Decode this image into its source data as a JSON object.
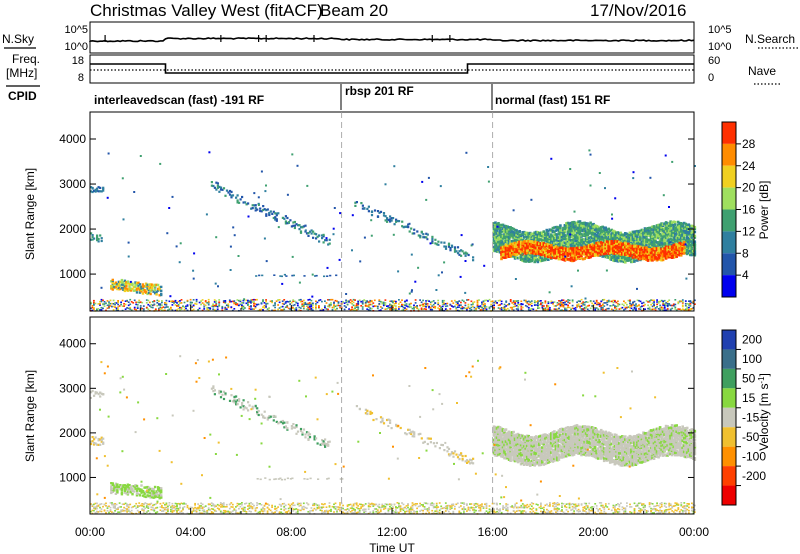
{
  "header": {
    "station": "Christmas Valley West (fitACF)",
    "beam": "Beam 20",
    "date": "17/Nov/2016"
  },
  "status_panel": {
    "left_top": "N.Sky",
    "left_mid": "Freq.",
    "left_mid_unit": "[MHz]",
    "left_bottom": "CPID",
    "right_top": "N.Search",
    "right_bottom": "Nave",
    "nsky_ticks": [
      "10^5",
      "10^0"
    ],
    "nsearch_ticks": [
      "10^5",
      "10^0"
    ],
    "freq_ticks": [
      "18",
      "8"
    ],
    "nave_ticks": [
      "60",
      "0"
    ]
  },
  "cpid_segments": [
    {
      "label": "interleavedscan (fast) -191 RF",
      "start_hour": 0
    },
    {
      "label": "rbsp 201 RF",
      "start_hour": 10
    },
    {
      "label": "normal (fast) 151 RF",
      "start_hour": 16
    }
  ],
  "chart_data": [
    {
      "type": "heatmap",
      "quantity": "power",
      "ylabel": "Slant Range [km]",
      "xlabel": "Time UT",
      "xlim_hours": [
        0,
        24
      ],
      "ylim_km": [
        180,
        4600
      ],
      "y_ticks": [
        1000,
        2000,
        3000,
        4000
      ],
      "x_tick_labels": [
        "00:00",
        "04:00",
        "08:00",
        "12:00",
        "16:00",
        "20:00",
        "00:00"
      ],
      "colorbar_label": "Power [dB]",
      "colorbar_ticks": [
        "4",
        "8",
        "12",
        "16",
        "20",
        "24",
        "28"
      ],
      "colors": [
        "#0000ee",
        "#2255aa",
        "#2f7f9f",
        "#3fa070",
        "#9fdf5f",
        "#f0d020",
        "#ff8c00",
        "#ff3000"
      ]
    },
    {
      "type": "heatmap",
      "quantity": "velocity",
      "ylabel": "Slant Range [km]",
      "xlabel": "Time UT",
      "xlim_hours": [
        0,
        24
      ],
      "ylim_km": [
        180,
        4600
      ],
      "y_ticks": [
        1000,
        2000,
        3000,
        4000
      ],
      "x_tick_labels": [
        "00:00",
        "04:00",
        "08:00",
        "12:00",
        "16:00",
        "20:00",
        "00:00"
      ],
      "colorbar_label": "Velocity [m s",
      "colorbar_label_sup": "-1",
      "colorbar_ticks": [
        "200",
        "100",
        "50",
        "15",
        "-15",
        "-50",
        "-100",
        "-200"
      ],
      "colors": [
        "#2040b0",
        "#3a6f8a",
        "#3f9f5f",
        "#88d840",
        "#c8c8bc",
        "#f0c030",
        "#ff9000",
        "#ff4000",
        "#ee0000"
      ]
    }
  ]
}
